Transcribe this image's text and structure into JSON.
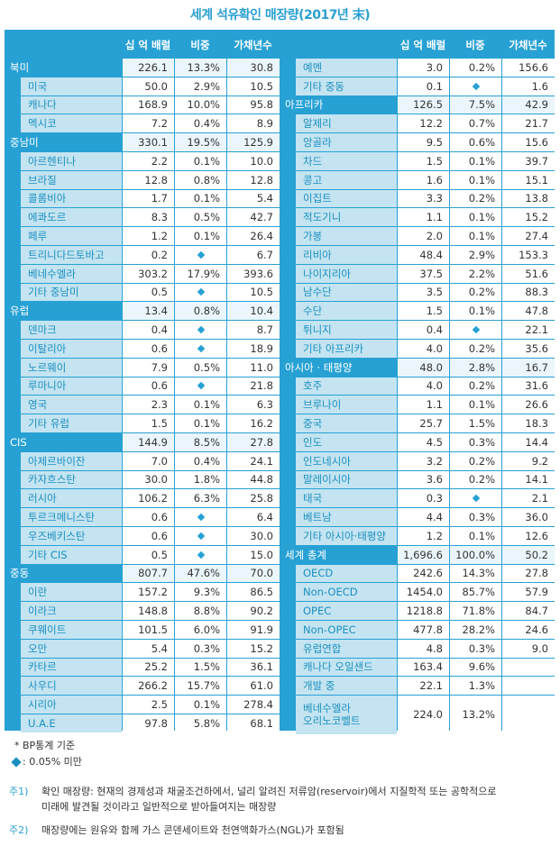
{
  "title": "세계 석유확인 매장량(2017년 末)",
  "header": {
    "col1": "십 억 배럴",
    "col2": "비중",
    "col3": "가채년수"
  },
  "left_rows": [
    {
      "name": "북미",
      "kind": "region",
      "v1": "226.1",
      "v2": "13.3%",
      "v3": "30.8"
    },
    {
      "name": "미국",
      "kind": "sub",
      "v1": "50.0",
      "v2": "2.9%",
      "v3": "10.5"
    },
    {
      "name": "캐나다",
      "kind": "sub",
      "v1": "168.9",
      "v2": "10.0%",
      "v3": "95.8"
    },
    {
      "name": "멕시코",
      "kind": "sub",
      "v1": "7.2",
      "v2": "0.4%",
      "v3": "8.9"
    },
    {
      "name": "중남미",
      "kind": "region",
      "v1": "330.1",
      "v2": "19.5%",
      "v3": "125.9"
    },
    {
      "name": "아르헨티나",
      "kind": "sub",
      "v1": "2.2",
      "v2": "0.1%",
      "v3": "10.0"
    },
    {
      "name": "브라질",
      "kind": "sub",
      "v1": "12.8",
      "v2": "0.8%",
      "v3": "12.8"
    },
    {
      "name": "콜롬비아",
      "kind": "sub",
      "v1": "1.7",
      "v2": "0.1%",
      "v3": "5.4"
    },
    {
      "name": "에콰도르",
      "kind": "sub",
      "v1": "8.3",
      "v2": "0.5%",
      "v3": "42.7"
    },
    {
      "name": "페루",
      "kind": "sub",
      "v1": "1.2",
      "v2": "0.1%",
      "v3": "26.4"
    },
    {
      "name": "트리니다드토바고",
      "kind": "sub",
      "v1": "0.2",
      "v2": "◆",
      "v3": "6.7"
    },
    {
      "name": "베네수엘라",
      "kind": "sub",
      "v1": "303.2",
      "v2": "17.9%",
      "v3": "393.6"
    },
    {
      "name": "기타 중남미",
      "kind": "sub",
      "v1": "0.5",
      "v2": "◆",
      "v3": "10.5"
    },
    {
      "name": "유럽",
      "kind": "region",
      "v1": "13.4",
      "v2": "0.8%",
      "v3": "10.4"
    },
    {
      "name": "덴마크",
      "kind": "sub",
      "v1": "0.4",
      "v2": "◆",
      "v3": "8.7"
    },
    {
      "name": "이탈리아",
      "kind": "sub",
      "v1": "0.6",
      "v2": "◆",
      "v3": "18.9"
    },
    {
      "name": "노르웨이",
      "kind": "sub",
      "v1": "7.9",
      "v2": "0.5%",
      "v3": "11.0"
    },
    {
      "name": "루마니아",
      "kind": "sub",
      "v1": "0.6",
      "v2": "◆",
      "v3": "21.8"
    },
    {
      "name": "영국",
      "kind": "sub",
      "v1": "2.3",
      "v2": "0.1%",
      "v3": "6.3"
    },
    {
      "name": "기타 유럽",
      "kind": "sub",
      "v1": "1.5",
      "v2": "0.1%",
      "v3": "16.2"
    },
    {
      "name": "CIS",
      "kind": "region",
      "v1": "144.9",
      "v2": "8.5%",
      "v3": "27.8"
    },
    {
      "name": "아제르바이잔",
      "kind": "sub",
      "v1": "7.0",
      "v2": "0.4%",
      "v3": "24.1"
    },
    {
      "name": "카자흐스탄",
      "kind": "sub",
      "v1": "30.0",
      "v2": "1.8%",
      "v3": "44.8"
    },
    {
      "name": "러시아",
      "kind": "sub",
      "v1": "106.2",
      "v2": "6.3%",
      "v3": "25.8"
    },
    {
      "name": "투르크메니스탄",
      "kind": "sub",
      "v1": "0.6",
      "v2": "◆",
      "v3": "6.4"
    },
    {
      "name": "우즈베키스탄",
      "kind": "sub",
      "v1": "0.6",
      "v2": "◆",
      "v3": "30.0"
    },
    {
      "name": "기타 CIS",
      "kind": "sub",
      "v1": "0.5",
      "v2": "◆",
      "v3": "15.0"
    },
    {
      "name": "중동",
      "kind": "region",
      "v1": "807.7",
      "v2": "47.6%",
      "v3": "70.0"
    },
    {
      "name": "이란",
      "kind": "sub",
      "v1": "157.2",
      "v2": "9.3%",
      "v3": "86.5"
    },
    {
      "name": "이라크",
      "kind": "sub",
      "v1": "148.8",
      "v2": "8.8%",
      "v3": "90.2"
    },
    {
      "name": "쿠웨이트",
      "kind": "sub",
      "v1": "101.5",
      "v2": "6.0%",
      "v3": "91.9"
    },
    {
      "name": "오만",
      "kind": "sub",
      "v1": "5.4",
      "v2": "0.3%",
      "v3": "15.2"
    },
    {
      "name": "카타르",
      "kind": "sub",
      "v1": "25.2",
      "v2": "1.5%",
      "v3": "36.1"
    },
    {
      "name": "사우디",
      "kind": "sub",
      "v1": "266.2",
      "v2": "15.7%",
      "v3": "61.0"
    },
    {
      "name": "시리아",
      "kind": "sub",
      "v1": "2.5",
      "v2": "0.1%",
      "v3": "278.4"
    },
    {
      "name": "U.A.E",
      "kind": "sub",
      "v1": "97.8",
      "v2": "5.8%",
      "v3": "68.1"
    }
  ],
  "right_rows": [
    {
      "name": "예멘",
      "kind": "sub",
      "v1": "3.0",
      "v2": "0.2%",
      "v3": "156.6"
    },
    {
      "name": "기타 중동",
      "kind": "sub",
      "v1": "0.1",
      "v2": "◆",
      "v3": "1.6"
    },
    {
      "name": "아프리카",
      "kind": "region",
      "v1": "126.5",
      "v2": "7.5%",
      "v3": "42.9"
    },
    {
      "name": "알제리",
      "kind": "sub",
      "v1": "12.2",
      "v2": "0.7%",
      "v3": "21.7"
    },
    {
      "name": "앙골라",
      "kind": "sub",
      "v1": "9.5",
      "v2": "0.6%",
      "v3": "15.6"
    },
    {
      "name": "차드",
      "kind": "sub",
      "v1": "1.5",
      "v2": "0.1%",
      "v3": "39.7"
    },
    {
      "name": "콩고",
      "kind": "sub",
      "v1": "1.6",
      "v2": "0.1%",
      "v3": "15.1"
    },
    {
      "name": "이집트",
      "kind": "sub",
      "v1": "3.3",
      "v2": "0.2%",
      "v3": "13.8"
    },
    {
      "name": "적도기니",
      "kind": "sub",
      "v1": "1.1",
      "v2": "0.1%",
      "v3": "15.2"
    },
    {
      "name": "가봉",
      "kind": "sub",
      "v1": "2.0",
      "v2": "0.1%",
      "v3": "27.4"
    },
    {
      "name": "리비아",
      "kind": "sub",
      "v1": "48.4",
      "v2": "2.9%",
      "v3": "153.3"
    },
    {
      "name": "나이지리아",
      "kind": "sub",
      "v1": "37.5",
      "v2": "2.2%",
      "v3": "51.6"
    },
    {
      "name": "남수단",
      "kind": "sub",
      "v1": "3.5",
      "v2": "0.2%",
      "v3": "88.3"
    },
    {
      "name": "수단",
      "kind": "sub",
      "v1": "1.5",
      "v2": "0.1%",
      "v3": "47.8"
    },
    {
      "name": "튀니지",
      "kind": "sub",
      "v1": "0.4",
      "v2": "◆",
      "v3": "22.1"
    },
    {
      "name": "기타 아프리카",
      "kind": "sub",
      "v1": "4.0",
      "v2": "0.2%",
      "v3": "35.6"
    },
    {
      "name": "아시아 · 태평양",
      "kind": "region",
      "v1": "48.0",
      "v2": "2.8%",
      "v3": "16.7"
    },
    {
      "name": "호주",
      "kind": "sub",
      "v1": "4.0",
      "v2": "0.2%",
      "v3": "31.6"
    },
    {
      "name": "브루나이",
      "kind": "sub",
      "v1": "1.1",
      "v2": "0.1%",
      "v3": "26.6"
    },
    {
      "name": "중국",
      "kind": "sub",
      "v1": "25.7",
      "v2": "1.5%",
      "v3": "18.3"
    },
    {
      "name": "인도",
      "kind": "sub",
      "v1": "4.5",
      "v2": "0.3%",
      "v3": "14.4"
    },
    {
      "name": "인도네시아",
      "kind": "sub",
      "v1": "3.2",
      "v2": "0.2%",
      "v3": "9.2"
    },
    {
      "name": "말레이시아",
      "kind": "sub",
      "v1": "3.6",
      "v2": "0.2%",
      "v3": "14.1"
    },
    {
      "name": "태국",
      "kind": "sub",
      "v1": "0.3",
      "v2": "◆",
      "v3": "2.1"
    },
    {
      "name": "베트남",
      "kind": "sub",
      "v1": "4.4",
      "v2": "0.3%",
      "v3": "36.0"
    },
    {
      "name": "기타 아시아·태평양",
      "kind": "sub",
      "v1": "1.2",
      "v2": "0.1%",
      "v3": "12.6"
    },
    {
      "name": "세계 총계",
      "kind": "region",
      "v1": "1,696.6",
      "v2": "100.0%",
      "v3": "50.2"
    },
    {
      "name": "OECD",
      "kind": "sub",
      "v1": "242.6",
      "v2": "14.3%",
      "v3": "27.8"
    },
    {
      "name": "Non-OECD",
      "kind": "sub",
      "v1": "1454.0",
      "v2": "85.7%",
      "v3": "57.9"
    },
    {
      "name": "OPEC",
      "kind": "sub",
      "v1": "1218.8",
      "v2": "71.8%",
      "v3": "84.7"
    },
    {
      "name": "Non-OPEC",
      "kind": "sub",
      "v1": "477.8",
      "v2": "28.2%",
      "v3": "24.6"
    },
    {
      "name": "유럽연합",
      "kind": "sub",
      "v1": "4.8",
      "v2": "0.3%",
      "v3": "9.0"
    },
    {
      "name": "캐나다 오일샌드",
      "kind": "sub",
      "v1": "163.4",
      "v2": "9.6%",
      "v3": ""
    },
    {
      "name": "개발 중",
      "kind": "sub",
      "v1": "22.1",
      "v2": "1.3%",
      "v3": ""
    },
    {
      "name": "베네수엘라\n오리노코벨트",
      "kind": "sub",
      "v1": "224.0",
      "v2": "13.2%",
      "v3": "",
      "tall": true
    }
  ],
  "notes": {
    "source": "*  BP통계 기준",
    "legend": ": 0.05% 미만",
    "note1_tag": "주1)",
    "note1_text_a": "확인 매장량: 현재의 경제성과 채굴조건하에서, 널리 알려진 저류암(reservoir)에서 지질학적 또는 공학적으로",
    "note1_text_b": "미래에 발견될 것이라고 일반적으로 받아들여지는 매장량",
    "note2_tag": "주2)",
    "note2_text": "매장량에는 원유와 함께 가스 콘덴세이트와 천연액화가스(NGL)가 포함됨"
  },
  "colors": {
    "frame": "#27a1d4",
    "name_bg": "#c4e4f1",
    "name_text": "#1b8fc0"
  }
}
